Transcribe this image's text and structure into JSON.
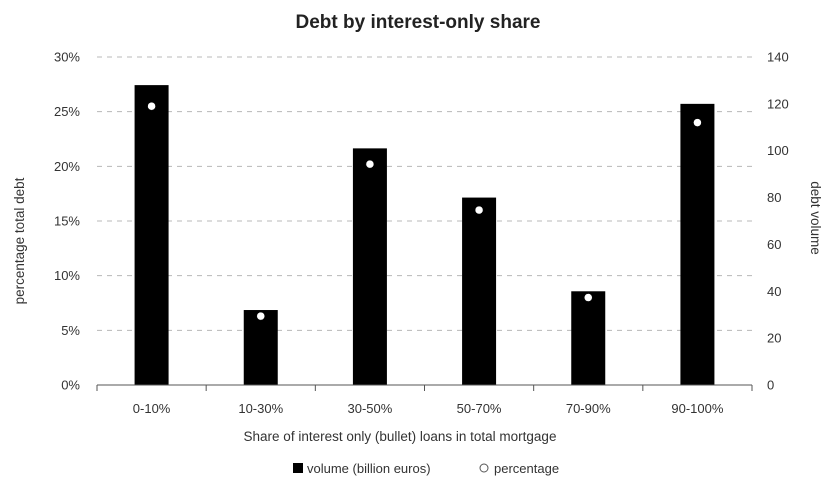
{
  "chart_data": {
    "type": "bar",
    "title": "Debt by interest-only share",
    "xlabel": "Share of interest only (bullet) loans in total mortgage",
    "ylabel_left": "percentage total debt",
    "ylabel_right": "debt volume",
    "categories": [
      "0-10%",
      "10-30%",
      "30-50%",
      "50-70%",
      "70-90%",
      "90-100%"
    ],
    "left_axis": {
      "min": 0,
      "max": 30,
      "step": 5,
      "tick_labels": [
        "0%",
        "5%",
        "10%",
        "15%",
        "20%",
        "25%",
        "30%"
      ]
    },
    "right_axis": {
      "min": 0,
      "max": 140,
      "step": 20,
      "tick_labels": [
        "0",
        "20",
        "40",
        "60",
        "80",
        "100",
        "120",
        "140"
      ]
    },
    "series": [
      {
        "name": "volume (billion euros)",
        "kind": "bar",
        "axis": "right",
        "color": "#000000",
        "values": [
          128,
          32,
          101,
          80,
          40,
          120
        ]
      },
      {
        "name": "percentage",
        "kind": "marker",
        "axis": "left",
        "color": "#ffffff",
        "values": [
          25.5,
          6.3,
          20.2,
          16.0,
          8.0,
          24.0
        ]
      }
    ],
    "grid": true,
    "legend": "bottom"
  }
}
